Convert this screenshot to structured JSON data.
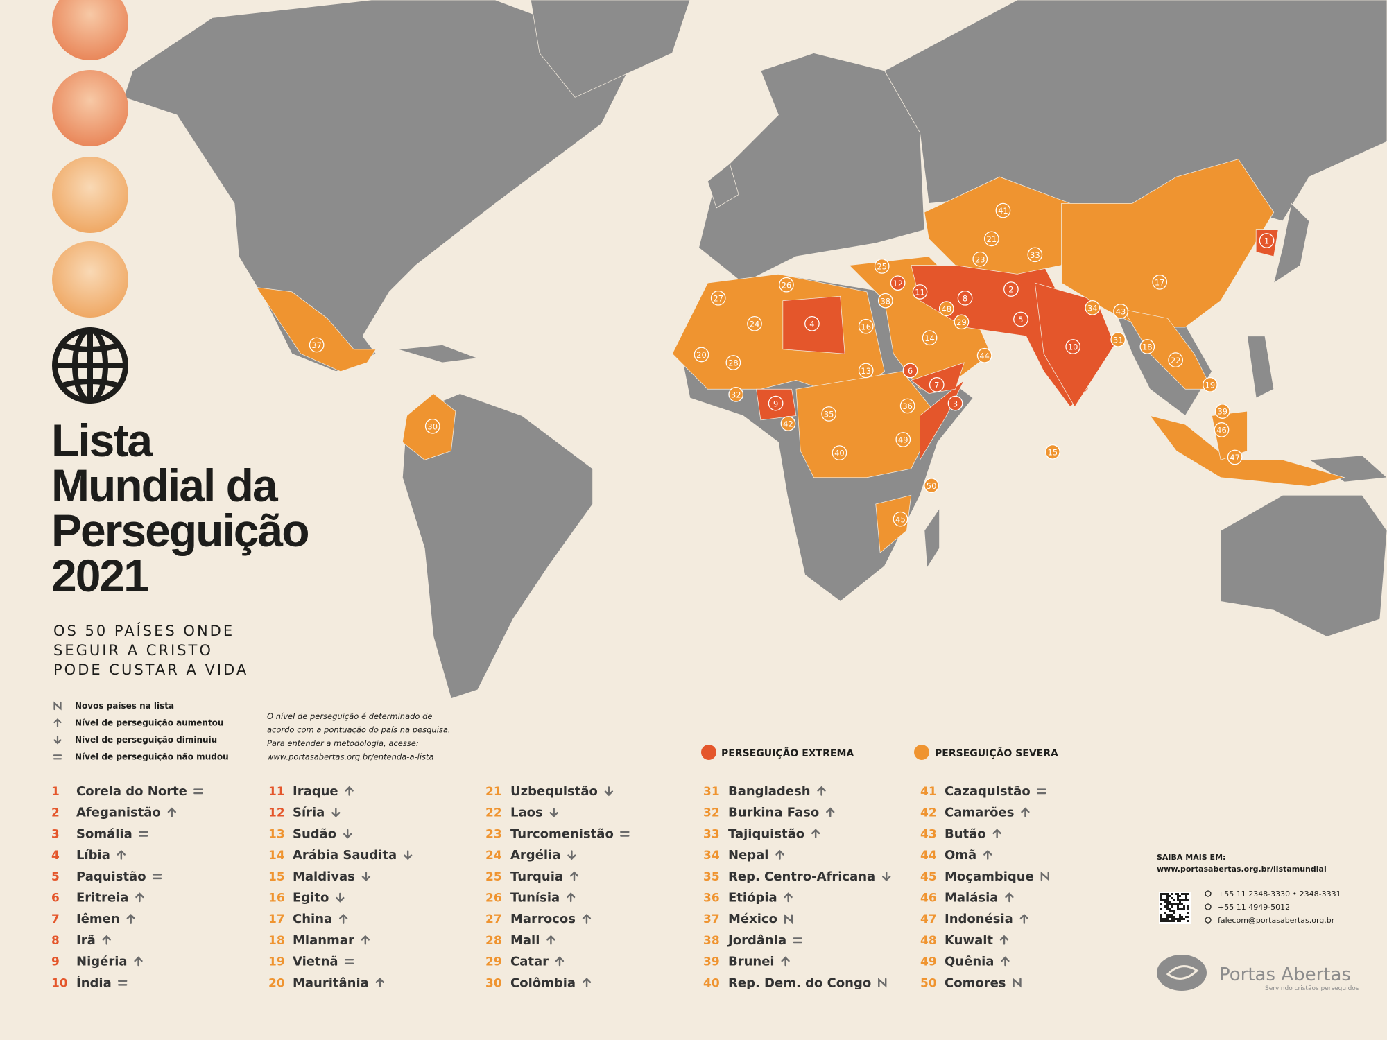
{
  "title_lines": [
    "Lista",
    "Mundial da",
    "Perseguição",
    "2021"
  ],
  "subtitle_lines": [
    "OS 50 PAÍSES ONDE",
    "SEGUIR A CRISTO",
    "PODE CUSTAR A VIDA"
  ],
  "trend_legend": [
    {
      "trend": "new",
      "label": "Novos países na lista"
    },
    {
      "trend": "up",
      "label": "Nível de perseguição aumentou"
    },
    {
      "trend": "down",
      "label": "Nível de perseguição diminuiu"
    },
    {
      "trend": "same",
      "label": "Nível de perseguição não mudou"
    }
  ],
  "note_lines": [
    "O nível de perseguição é determinado de",
    "acordo com a pontuação do país na pesquisa.",
    "Para entender a metodologia, acesse:",
    "www.portasabertas.org.br/entenda-a-lista"
  ],
  "levels": {
    "extreme": {
      "label": "PERSEGUIÇÃO EXTREMA",
      "color": "#e4562b"
    },
    "severe": {
      "label": "PERSEGUIÇÃO SEVERA",
      "color": "#ef9430"
    }
  },
  "countries": [
    {
      "rank": 1,
      "name": "Coreia do Norte",
      "trend": "same",
      "level": "extreme"
    },
    {
      "rank": 2,
      "name": "Afeganistão",
      "trend": "up",
      "level": "extreme"
    },
    {
      "rank": 3,
      "name": "Somália",
      "trend": "same",
      "level": "extreme"
    },
    {
      "rank": 4,
      "name": "Líbia",
      "trend": "up",
      "level": "extreme"
    },
    {
      "rank": 5,
      "name": "Paquistão",
      "trend": "same",
      "level": "extreme"
    },
    {
      "rank": 6,
      "name": "Eritreia",
      "trend": "up",
      "level": "extreme"
    },
    {
      "rank": 7,
      "name": "Iêmen",
      "trend": "up",
      "level": "extreme"
    },
    {
      "rank": 8,
      "name": "Irã",
      "trend": "up",
      "level": "extreme"
    },
    {
      "rank": 9,
      "name": "Nigéria",
      "trend": "up",
      "level": "extreme"
    },
    {
      "rank": 10,
      "name": "Índia",
      "trend": "same",
      "level": "extreme"
    },
    {
      "rank": 11,
      "name": "Iraque",
      "trend": "up",
      "level": "extreme"
    },
    {
      "rank": 12,
      "name": "Síria",
      "trend": "down",
      "level": "extreme"
    },
    {
      "rank": 13,
      "name": "Sudão",
      "trend": "down",
      "level": "severe"
    },
    {
      "rank": 14,
      "name": "Arábia Saudita",
      "trend": "down",
      "level": "severe"
    },
    {
      "rank": 15,
      "name": "Maldivas",
      "trend": "down",
      "level": "severe"
    },
    {
      "rank": 16,
      "name": "Egito",
      "trend": "down",
      "level": "severe"
    },
    {
      "rank": 17,
      "name": "China",
      "trend": "up",
      "level": "severe"
    },
    {
      "rank": 18,
      "name": "Mianmar",
      "trend": "up",
      "level": "severe"
    },
    {
      "rank": 19,
      "name": "Vietnã",
      "trend": "same",
      "level": "severe"
    },
    {
      "rank": 20,
      "name": "Mauritânia",
      "trend": "up",
      "level": "severe"
    },
    {
      "rank": 21,
      "name": "Uzbequistão",
      "trend": "down",
      "level": "severe"
    },
    {
      "rank": 22,
      "name": "Laos",
      "trend": "down",
      "level": "severe"
    },
    {
      "rank": 23,
      "name": "Turcomenistão",
      "trend": "same",
      "level": "severe"
    },
    {
      "rank": 24,
      "name": "Argélia",
      "trend": "down",
      "level": "severe"
    },
    {
      "rank": 25,
      "name": "Turquia",
      "trend": "up",
      "level": "severe"
    },
    {
      "rank": 26,
      "name": "Tunísia",
      "trend": "up",
      "level": "severe"
    },
    {
      "rank": 27,
      "name": "Marrocos",
      "trend": "up",
      "level": "severe"
    },
    {
      "rank": 28,
      "name": "Mali",
      "trend": "up",
      "level": "severe"
    },
    {
      "rank": 29,
      "name": "Catar",
      "trend": "up",
      "level": "severe"
    },
    {
      "rank": 30,
      "name": "Colômbia",
      "trend": "up",
      "level": "severe"
    },
    {
      "rank": 31,
      "name": "Bangladesh",
      "trend": "up",
      "level": "severe"
    },
    {
      "rank": 32,
      "name": "Burkina Faso",
      "trend": "up",
      "level": "severe"
    },
    {
      "rank": 33,
      "name": "Tajiquistão",
      "trend": "up",
      "level": "severe"
    },
    {
      "rank": 34,
      "name": "Nepal",
      "trend": "up",
      "level": "severe"
    },
    {
      "rank": 35,
      "name": "Rep. Centro-Africana",
      "trend": "down",
      "level": "severe"
    },
    {
      "rank": 36,
      "name": "Etiópia",
      "trend": "up",
      "level": "severe"
    },
    {
      "rank": 37,
      "name": "México",
      "trend": "new",
      "level": "severe"
    },
    {
      "rank": 38,
      "name": "Jordânia",
      "trend": "same",
      "level": "severe"
    },
    {
      "rank": 39,
      "name": "Brunei",
      "trend": "up",
      "level": "severe"
    },
    {
      "rank": 40,
      "name": "Rep. Dem. do Congo",
      "trend": "new",
      "level": "severe"
    },
    {
      "rank": 41,
      "name": "Cazaquistão",
      "trend": "same",
      "level": "severe"
    },
    {
      "rank": 42,
      "name": "Camarões",
      "trend": "up",
      "level": "severe"
    },
    {
      "rank": 43,
      "name": "Butão",
      "trend": "up",
      "level": "severe"
    },
    {
      "rank": 44,
      "name": "Omã",
      "trend": "up",
      "level": "severe"
    },
    {
      "rank": 45,
      "name": "Moçambique",
      "trend": "new",
      "level": "severe"
    },
    {
      "rank": 46,
      "name": "Malásia",
      "trend": "up",
      "level": "severe"
    },
    {
      "rank": 47,
      "name": "Indonésia",
      "trend": "up",
      "level": "severe"
    },
    {
      "rank": 48,
      "name": "Kuwait",
      "trend": "up",
      "level": "severe"
    },
    {
      "rank": 49,
      "name": "Quênia",
      "trend": "up",
      "level": "severe"
    },
    {
      "rank": 50,
      "name": "Comores",
      "trend": "new",
      "level": "severe"
    }
  ],
  "contact": {
    "label": "SAIBA MAIS EM:",
    "url": "www.portasabertas.org.br/listamundial",
    "phone": "+55 11 2348-3330 • 2348-3331",
    "whatsapp": "+55 11 4949-5012",
    "email": "falecom@portasabertas.org.br"
  },
  "logo": {
    "name": "Portas Abertas",
    "tagline": "Servindo cristãos perseguidos"
  }
}
